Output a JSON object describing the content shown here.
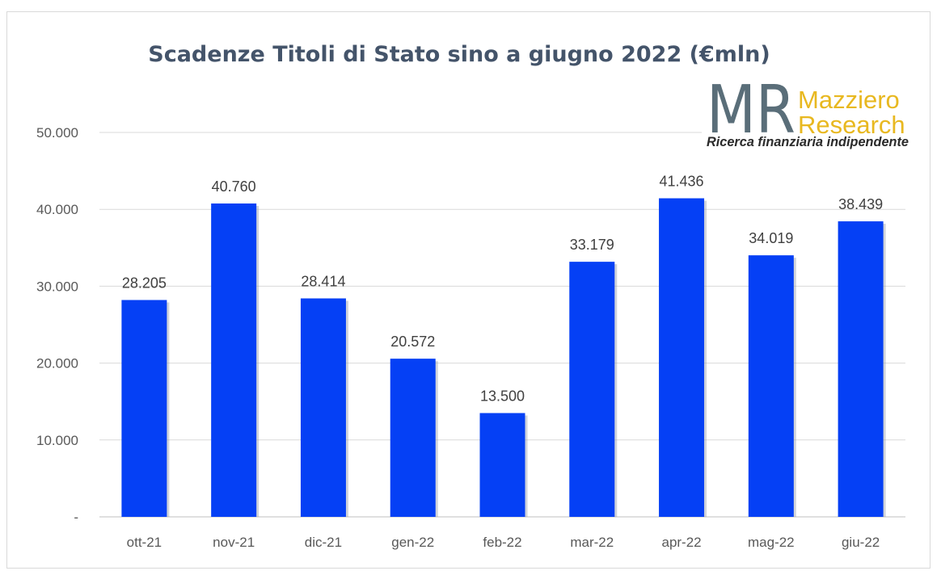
{
  "chart_data": {
    "type": "bar",
    "title": "Scadenze Titoli di Stato sino a giugno 2022 (€mln)",
    "categories": [
      "ott-21",
      "nov-21",
      "dic-21",
      "gen-22",
      "feb-22",
      "mar-22",
      "apr-22",
      "mag-22",
      "giu-22"
    ],
    "values": [
      28205,
      40760,
      28414,
      20572,
      13500,
      33179,
      41436,
      34019,
      38439
    ],
    "data_labels": [
      "28.205",
      "40.760",
      "28.414",
      "20.572",
      "13.500",
      "33.179",
      "41.436",
      "34.019",
      "38.439"
    ],
    "y_ticks": [
      0,
      10000,
      20000,
      30000,
      40000,
      50000
    ],
    "y_tick_labels": [
      "-",
      "10.000",
      "20.000",
      "30.000",
      "40.000",
      "50.000"
    ],
    "ylim": [
      0,
      50000
    ],
    "grid": true,
    "bar_color": "#0540f5",
    "grid_color": "#d9d9d9"
  },
  "logo": {
    "mark": "MR",
    "name_line1": "Mazziero",
    "name_line2": "Research",
    "tagline": "Ricerca finanziaria indipendente"
  }
}
